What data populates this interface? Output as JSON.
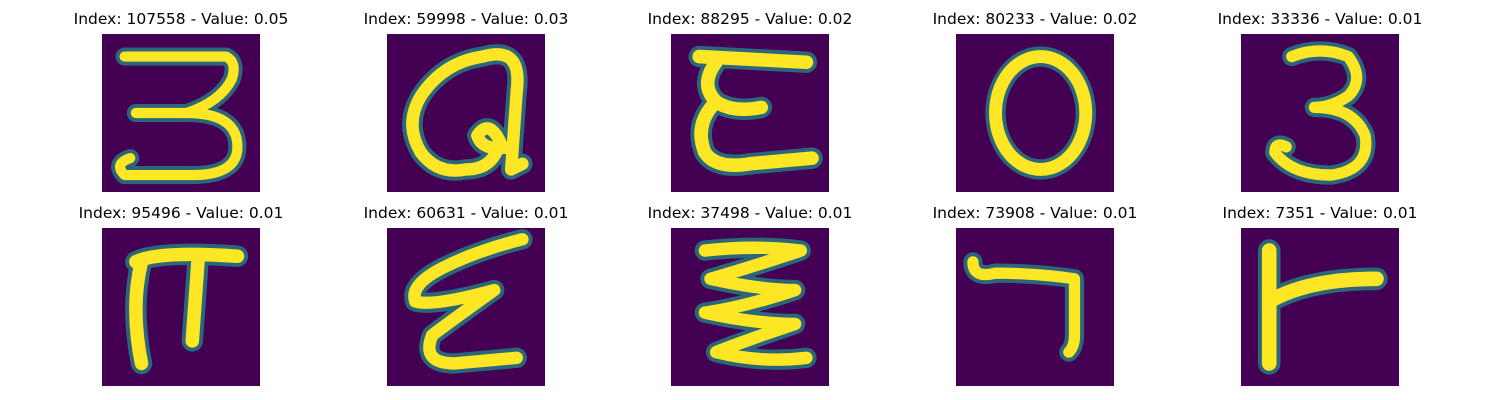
{
  "grid": {
    "rows": 2,
    "cols": 5,
    "images": [
      {
        "title": "Index: 107558 - Value: 0.05",
        "glyph": "handwritten-3-flat-top"
      },
      {
        "title": "Index: 59998 - Value: 0.03",
        "glyph": "handwritten-Q"
      },
      {
        "title": "Index: 88295 - Value: 0.02",
        "glyph": "handwritten-epsilon"
      },
      {
        "title": "Index: 80233 - Value: 0.02",
        "glyph": "handwritten-0"
      },
      {
        "title": "Index: 33336 - Value: 0.01",
        "glyph": "handwritten-3"
      },
      {
        "title": "Index: 95496 - Value: 0.01",
        "glyph": "handwritten-pi"
      },
      {
        "title": "Index: 60631 - Value: 0.01",
        "glyph": "handwritten-epsilon-slanted"
      },
      {
        "title": "Index: 37498 - Value: 0.01",
        "glyph": "handwritten-zigzag"
      },
      {
        "title": "Index: 73908 - Value: 0.01",
        "glyph": "handwritten-7-hook"
      },
      {
        "title": "Index: 7351 - Value: 0.01",
        "glyph": "handwritten-T-rotated"
      }
    ]
  },
  "colors": {
    "background": "#440154",
    "stroke": "#fde725",
    "edge": "#21918c"
  }
}
